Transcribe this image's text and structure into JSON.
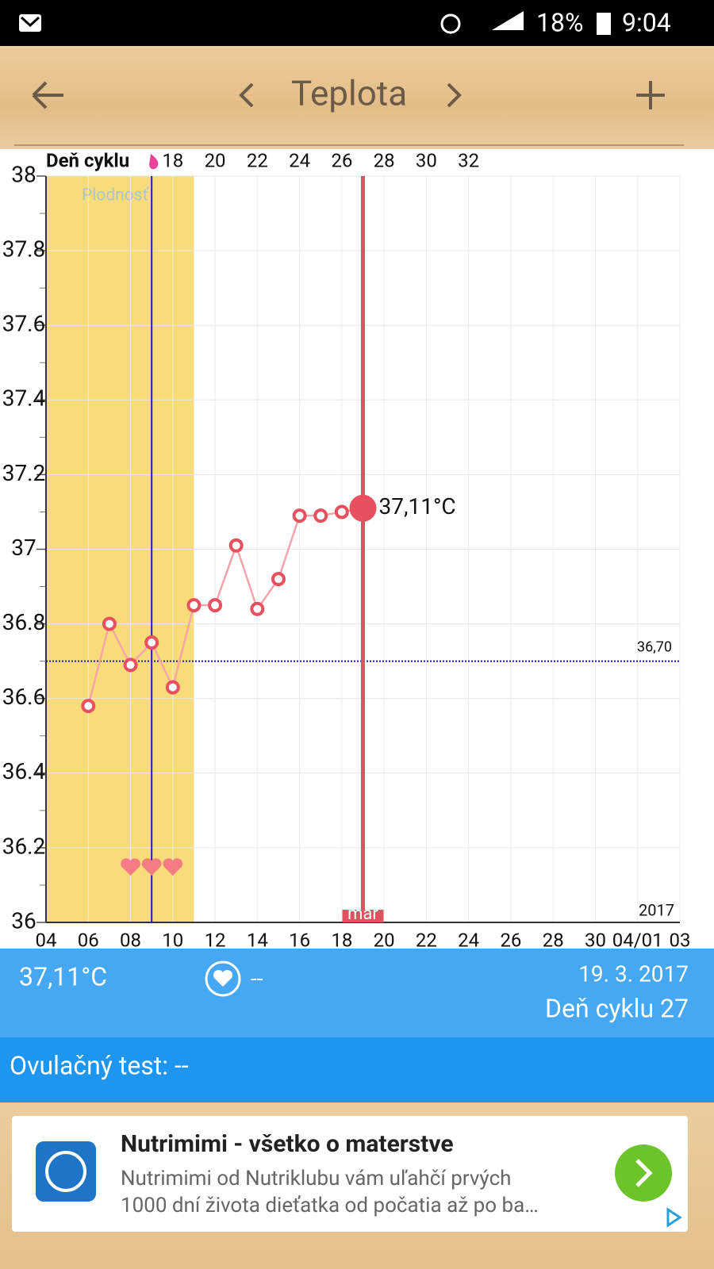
{
  "status_bar": {
    "battery": "18%",
    "time": "9:04"
  },
  "header": {
    "title": "Teplota"
  },
  "chart_data": {
    "type": "line",
    "top_axis": {
      "label": "Deň cyklu",
      "ticks": [
        18,
        20,
        22,
        24,
        26,
        28,
        30,
        32
      ]
    },
    "categories": [
      "04",
      null,
      "06",
      null,
      "08",
      null,
      "10",
      null,
      "12",
      null,
      "14",
      null,
      "16",
      null,
      "18",
      null,
      "20",
      null,
      "22",
      null,
      "24",
      null,
      "26",
      null,
      "28",
      null,
      "30",
      null,
      "04/01",
      null,
      "03"
    ],
    "series": [
      {
        "color": "#e8505f",
        "values": [
          null,
          null,
          36.58,
          36.8,
          36.69,
          36.75,
          36.63,
          36.85,
          36.85,
          37.01,
          36.84,
          36.92,
          37.09,
          37.09,
          37.1,
          37.11,
          null,
          null,
          null,
          null,
          null,
          null,
          null,
          null,
          null,
          null,
          null,
          null,
          null,
          null,
          null
        ],
        "value_labels": [
          null,
          null,
          null,
          null,
          null,
          null,
          null,
          null,
          null,
          null,
          null,
          null,
          null,
          null,
          null,
          "37,11°C",
          null,
          null,
          null,
          null,
          null,
          null,
          null,
          null,
          null,
          null,
          null,
          null,
          null,
          null,
          null
        ]
      }
    ],
    "ylim": [
      36,
      38
    ],
    "yticks": [
      36,
      36.2,
      36.4,
      36.6,
      36.8,
      37,
      37.2,
      37.4,
      37.6,
      37.8,
      38
    ],
    "grid": true,
    "fertile_window": {
      "label": "Plodnosť",
      "range": [
        0,
        7
      ],
      "color": "#f9dc7a"
    },
    "ovulation_index": 5,
    "reference_line": {
      "value": 36.7,
      "label": "36,70"
    },
    "cursor": {
      "index": 15,
      "label": "mar"
    },
    "year_label": "2017"
  },
  "info": {
    "temperature": "37,11°C",
    "status": "--",
    "date": "19. 3. 2017",
    "cycle_day": "Deň cyklu 27",
    "ovulation_test": "Ovulačný test: --"
  },
  "ad": {
    "title": "Nutrimimi - všetko o materstve",
    "line1": "Nutrimimi od Nutriklubu vám uľahčí prvých",
    "line2": "1000 dní života dieťatka od počatia až po ba…"
  }
}
